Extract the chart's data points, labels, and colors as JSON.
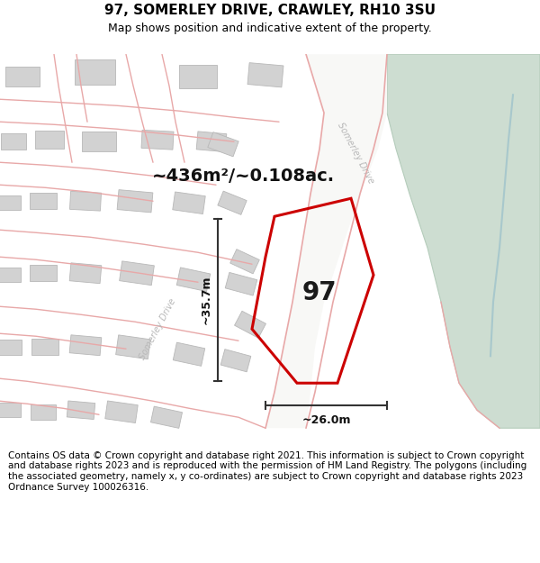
{
  "title": "97, SOMERLEY DRIVE, CRAWLEY, RH10 3SU",
  "subtitle": "Map shows position and indicative extent of the property.",
  "area_text": "~436m²/~0.108ac.",
  "dim_width": "~26.0m",
  "dim_height": "~35.7m",
  "property_number": "97",
  "footer": "Contains OS data © Crown copyright and database right 2021. This information is subject to Crown copyright and database rights 2023 and is reproduced with the permission of HM Land Registry. The polygons (including the associated geometry, namely x, y co-ordinates) are subject to Crown copyright and database rights 2023 Ordnance Survey 100026316.",
  "map_bg": "#eeede9",
  "green_fill": "#cdddd1",
  "green_edge": "#b5ccbb",
  "road_fill": "#ffffff",
  "building_fill": "#d2d2d2",
  "building_edge": "#b8b8b8",
  "plot_color": "#cc0000",
  "street_color": "#e8a8a8",
  "dim_color": "#333333",
  "road_label_color": "#b0b0b0",
  "title_fontsize": 11,
  "subtitle_fontsize": 9,
  "footer_fontsize": 7.5,
  "area_fontsize": 14,
  "num_fontsize": 20,
  "dim_fontsize": 9
}
